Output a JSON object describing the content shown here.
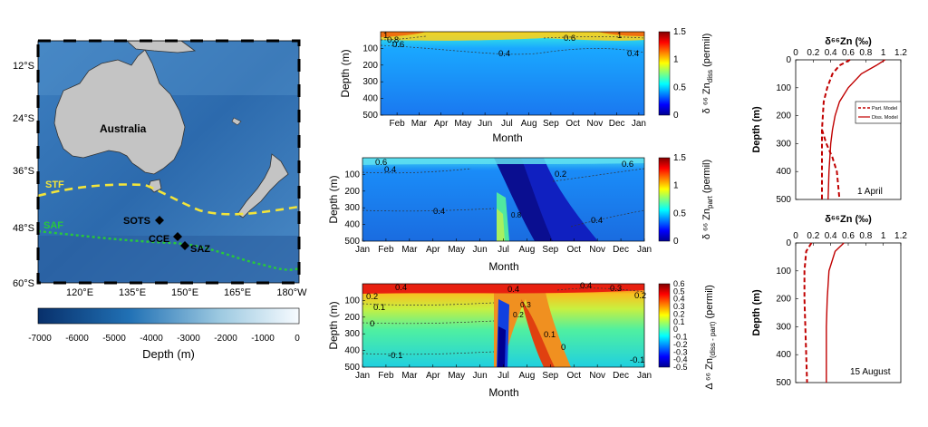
{
  "map": {
    "lat_labels": [
      "12°S",
      "24°S",
      "36°S",
      "48°S",
      "60°S"
    ],
    "lon_labels": [
      "120°E",
      "135°E",
      "150°E",
      "165°E",
      "180°W"
    ],
    "continent": "Australia",
    "fronts": [
      {
        "name": "STF",
        "color": "#f2e43a"
      },
      {
        "name": "SAF",
        "color": "#28c83c"
      }
    ],
    "sites": [
      "SOTS",
      "CCE",
      "SAZ"
    ],
    "colorbar": {
      "ticks": [
        "-7000",
        "-6000",
        "-5000",
        "-4000",
        "-3000",
        "-2000",
        "-1000",
        "0"
      ],
      "label": "Depth (m)"
    }
  },
  "chart_data": [
    {
      "type": "heatmap",
      "id": "diss",
      "xlabel": "Month",
      "ylabel": "Depth (m)",
      "x": [
        "Feb",
        "Mar",
        "Apr",
        "May",
        "Jun",
        "Jul",
        "Aug",
        "Sep",
        "Oct",
        "Nov",
        "Dec",
        "Jan"
      ],
      "yticks": [
        "100",
        "200",
        "300",
        "400",
        "500"
      ],
      "ylim": [
        0,
        500
      ],
      "colorbar": {
        "min": 0,
        "max": 1.5,
        "ticks": [
          "1.5",
          "1",
          "0.5",
          "0"
        ],
        "label_main": "δ ⁶⁶ Zn",
        "label_sub": "diss",
        "label_unit": " (permil)"
      },
      "contour_labels": [
        "1",
        "0.8",
        "0.6",
        "0.4",
        "0.6",
        "0.4",
        "1"
      ]
    },
    {
      "type": "heatmap",
      "id": "part",
      "xlabel": "Month",
      "ylabel": "Depth (m)",
      "x": [
        "Jan",
        "Feb",
        "Mar",
        "Apr",
        "May",
        "Jun",
        "Jul",
        "Aug",
        "Sep",
        "Oct",
        "Nov",
        "Dec",
        "Jan"
      ],
      "yticks": [
        "100",
        "200",
        "300",
        "400",
        "500"
      ],
      "ylim": [
        0,
        500
      ],
      "colorbar": {
        "min": 0,
        "max": 1.5,
        "ticks": [
          "1.5",
          "1",
          "0.5",
          "0"
        ],
        "label_main": "δ ⁶⁶ Zn",
        "label_sub": "part",
        "label_unit": " (permil)"
      },
      "contour_labels": [
        "0.6",
        "0.4",
        "0.4",
        "0.2",
        "0.6",
        "0.4",
        "0.8"
      ]
    },
    {
      "type": "heatmap",
      "id": "delta",
      "xlabel": "Month",
      "ylabel": "Depth (m)",
      "x": [
        "Jan",
        "Feb",
        "Mar",
        "Apr",
        "May",
        "Jun",
        "Jul",
        "Aug",
        "Sep",
        "Oct",
        "Nov",
        "Dec",
        "Jan"
      ],
      "yticks": [
        "100",
        "200",
        "300",
        "400",
        "500"
      ],
      "ylim": [
        0,
        500
      ],
      "colorbar": {
        "min": -0.5,
        "max": 0.6,
        "ticks": [
          "0.6",
          "0.5",
          "0.4",
          "0.3",
          "0.2",
          "0.1",
          "0",
          "-0.1",
          "-0.2",
          "-0.3",
          "-0.4",
          "-0.5"
        ],
        "label_main": "Δ ⁶⁶ Zn",
        "label_sub": "(diss - part)",
        "label_unit": " (permil)"
      },
      "contour_labels": [
        "0.4",
        "0.2",
        "0.1",
        "0",
        "-0.1",
        "0.4",
        "0.3",
        "0.2",
        "0.4",
        "0.3",
        "0.2",
        "0.1",
        "0",
        "-0.1"
      ]
    },
    {
      "type": "line",
      "id": "profile-april",
      "xlabel": "δ⁶⁶Zn (‰)",
      "ylabel": "Depth (m)",
      "xticks": [
        "0",
        "0.2",
        "0.4",
        "0.6",
        "0.8",
        "1",
        "1.2"
      ],
      "yticks": [
        "0",
        "100",
        "200",
        "300",
        "400",
        "500"
      ],
      "xlim": [
        0,
        1.2
      ],
      "ylim": [
        0,
        500
      ],
      "annotation": "1 April",
      "legend": [
        "Part. Model",
        "Diss. Model"
      ],
      "series": [
        {
          "name": "Part. Model",
          "style": "dashed",
          "x": [
            0.62,
            0.5,
            0.42,
            0.36,
            0.32,
            0.31,
            0.3,
            0.3
          ],
          "y": [
            0,
            20,
            50,
            100,
            150,
            200,
            250,
            500
          ]
        },
        {
          "name": "Diss. Model",
          "style": "solid",
          "x": [
            1.02,
            0.92,
            0.75,
            0.6,
            0.5,
            0.45,
            0.42,
            0.4,
            0.38,
            0.37
          ],
          "y": [
            0,
            20,
            50,
            100,
            150,
            200,
            250,
            300,
            400,
            500
          ]
        },
        {
          "name": "Part. Model",
          "style": "dashed",
          "x": [
            0.3,
            0.35,
            0.42,
            0.47,
            0.5
          ],
          "y": [
            250,
            300,
            350,
            400,
            500
          ]
        }
      ]
    },
    {
      "type": "line",
      "id": "profile-august",
      "xlabel": "δ⁶⁶Zn (‰)",
      "ylabel": "Depth (m)",
      "xticks": [
        "0",
        "0.2",
        "0.4",
        "0.6",
        "0.8",
        "1",
        "1.2"
      ],
      "yticks": [
        "0",
        "100",
        "200",
        "300",
        "400",
        "500"
      ],
      "xlim": [
        0,
        1.2
      ],
      "ylim": [
        0,
        500
      ],
      "annotation": "15 August",
      "series": [
        {
          "name": "Part. Model",
          "style": "dashed",
          "x": [
            0.18,
            0.12,
            0.1,
            0.1,
            0.11,
            0.12,
            0.13
          ],
          "y": [
            0,
            30,
            100,
            200,
            300,
            400,
            500
          ]
        },
        {
          "name": "Diss. Model",
          "style": "solid",
          "x": [
            0.55,
            0.45,
            0.38,
            0.36,
            0.35,
            0.35,
            0.35
          ],
          "y": [
            0,
            30,
            100,
            200,
            300,
            400,
            500
          ]
        }
      ]
    }
  ]
}
